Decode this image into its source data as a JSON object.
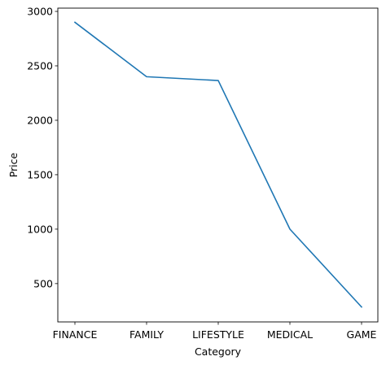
{
  "chart_data": {
    "type": "line",
    "title": "",
    "xlabel": "Category",
    "ylabel": "Price",
    "categories": [
      "FINANCE",
      "FAMILY",
      "LIFESTYLE",
      "MEDICAL",
      "GAME"
    ],
    "series": [
      {
        "values": [
          2900,
          2400,
          2365,
          1000,
          285
        ]
      }
    ],
    "yticks": [
      500,
      1000,
      1500,
      2000,
      2500,
      3000
    ],
    "ytick_labels": [
      "500",
      "1000",
      "1500",
      "2000",
      "2500",
      "3000"
    ],
    "ylim": [
      148,
      3030
    ],
    "grid": false,
    "line_color": "#1f77b4"
  }
}
